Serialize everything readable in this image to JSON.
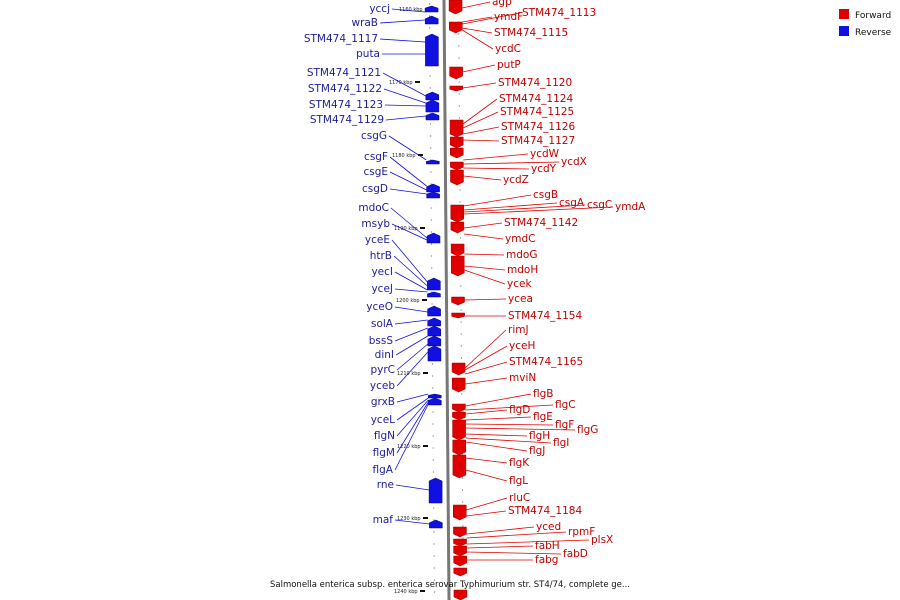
{
  "title": "Salmonella enterica subsp. enterica serovar Typhimurium str. ST4/74, complete ge...",
  "legend": [
    {
      "label": "Forward",
      "color": "#e00000"
    },
    {
      "label": "Reverse",
      "color": "#1010e0"
    }
  ],
  "colors": {
    "forward": "#e00000",
    "reverse": "#1010e0",
    "forward_label": "#c00000",
    "reverse_label": "#1c1c9c",
    "axis": "#777777"
  },
  "kbp_marks": [
    "1160 kbp",
    "1170 kbp",
    "1180 kbp",
    "1190 kbp",
    "1200 kbp",
    "1210 kbp",
    "1220 kbp",
    "1230 kbp",
    "1240 kbp"
  ],
  "forward_genes": [
    "agp",
    "ymdF",
    "STM474_1113",
    "STM474_1115",
    "ycdC",
    "putP",
    "STM474_1120",
    "STM474_1124",
    "STM474_1125",
    "STM474_1126",
    "STM474_1127",
    "ycdW",
    "ycdX",
    "ycdY",
    "ycdZ",
    "csgB",
    "csgA",
    "csgC",
    "ymdA",
    "STM474_1142",
    "ymdC",
    "mdoG",
    "mdoH",
    "ycek",
    "ycea",
    "STM474_1154",
    "rimJ",
    "yceH",
    "STM474_1165",
    "mviN",
    "flgB",
    "flgC",
    "flgD",
    "flgE",
    "flgF",
    "flgG",
    "flgH",
    "flgI",
    "flgJ",
    "flgK",
    "flgL",
    "rluC",
    "STM474_1184",
    "yced",
    "rpmF",
    "plsX",
    "fabH",
    "fabD",
    "fabg"
  ],
  "reverse_genes": [
    "yccj",
    "wraB",
    "STM474_1117",
    "puta",
    "STM474_1121",
    "STM474_1122",
    "STM474_1123",
    "STM474_1129",
    "csgG",
    "csgF",
    "csgE",
    "csgD",
    "mdoC",
    "msyb",
    "yceE",
    "htrB",
    "yecI",
    "yceJ",
    "yceO",
    "solA",
    "bssS",
    "dinI",
    "pyrC",
    "yceb",
    "grxB",
    "yceL",
    "flgN",
    "flgM",
    "flgA",
    "rne",
    "maf"
  ]
}
